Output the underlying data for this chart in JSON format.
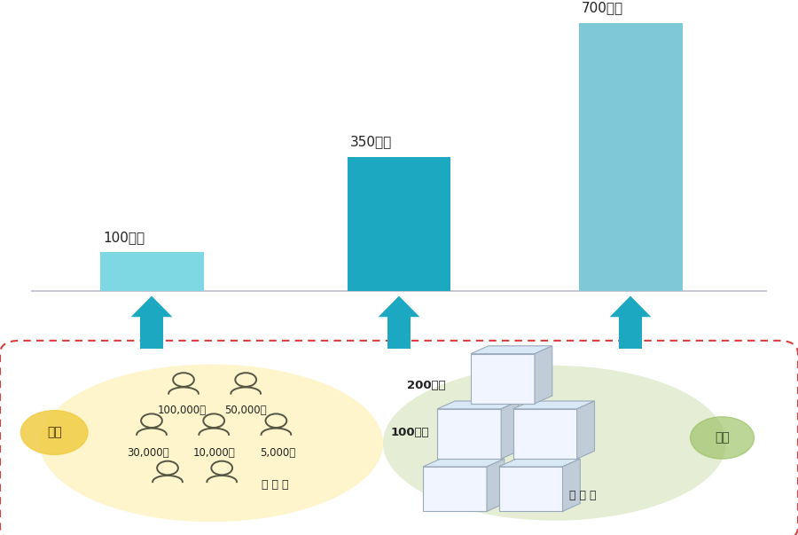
{
  "bars": [
    {
      "label": "100万円",
      "value": 1.0,
      "color": "#7ED8E4",
      "x": 0
    },
    {
      "label": "350万円",
      "value": 3.5,
      "color": "#1CA8C0",
      "x": 1
    },
    {
      "label": "700万円",
      "value": 7.0,
      "color": "#7EC8D8",
      "x": 2
    }
  ],
  "bar_width": 0.13,
  "bar_positions": [
    0.19,
    0.5,
    0.79
  ],
  "arrow_color": "#1CA8C0",
  "baseline_color": "#BBBBCC",
  "outer_box_color": "#D84040",
  "person_area_color": "#FFF5CC",
  "company_area_color": "#E5EDD5",
  "person_label": "個人",
  "person_label_bg": "#F2CC44",
  "company_label": "企業",
  "company_label_bg": "#98C060",
  "box_face_color": "#F0F5FF",
  "box_top_color": "#D8E8F5",
  "box_side_color": "#C0CDD8",
  "box_edge_color": "#9AAABB",
  "person_color": "#555544",
  "label_color": "#222222",
  "dots": "・ ・ ・"
}
